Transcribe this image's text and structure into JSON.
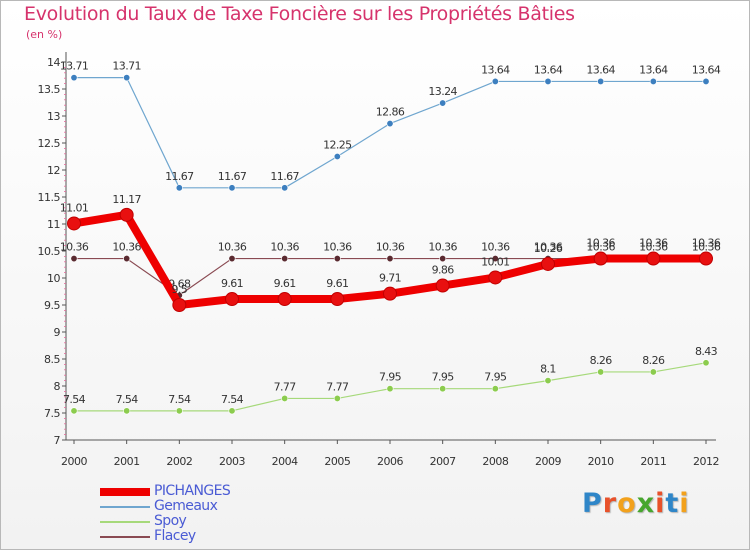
{
  "title": "Evolution du Taux de Taxe Foncière sur les Propriétés Bâties",
  "subtitle": "(en %)",
  "logo": {
    "letters": [
      "P",
      "r",
      "o",
      "x",
      "i",
      "t",
      "i"
    ],
    "colors": [
      "#2f86c8",
      "#e8512a",
      "#f2a11c",
      "#47a62e",
      "#e8512a",
      "#2f86c8",
      "#f2a11c"
    ]
  },
  "chart_data": {
    "type": "line",
    "x": [
      "2000",
      "2001",
      "2002",
      "2003",
      "2004",
      "2005",
      "2006",
      "2007",
      "2008",
      "2009",
      "2010",
      "2011",
      "2012"
    ],
    "ylim": [
      7,
      14
    ],
    "yticks": [
      "7",
      "7.5",
      "8",
      "8.5",
      "9",
      "9.5",
      "10",
      "10.5",
      "11",
      "11.5",
      "12",
      "12.5",
      "13",
      "13.5",
      "14"
    ],
    "grid": false,
    "legend_position": "bottom-left",
    "series": [
      {
        "name": "Gemeaux",
        "color": "#6fa6cf",
        "marker": "#3d7fbf",
        "width": 1.2,
        "values": [
          13.71,
          13.71,
          11.67,
          11.67,
          11.67,
          12.25,
          12.86,
          13.24,
          13.64,
          13.64,
          13.64,
          13.64,
          13.64
        ],
        "labels": [
          "13.71",
          "13.71",
          "11.67",
          "11.67",
          "11.67",
          "12.25",
          "12.86",
          "13.24",
          "13.64",
          "13.64",
          "13.64",
          "13.64",
          "13.64"
        ]
      },
      {
        "name": "Spoy",
        "color": "#a6d97a",
        "marker": "#8ccc4e",
        "width": 1.2,
        "values": [
          7.54,
          7.54,
          7.54,
          7.54,
          7.77,
          7.77,
          7.95,
          7.95,
          7.95,
          8.1,
          8.26,
          8.26,
          8.43
        ],
        "labels": [
          "7.54",
          "7.54",
          "7.54",
          "7.54",
          "7.77",
          "7.77",
          "7.95",
          "7.95",
          "7.95",
          "8.1",
          "8.26",
          "8.26",
          "8.43"
        ]
      },
      {
        "name": "Flacey",
        "color": "#8a4a52",
        "marker": "#5a2a30",
        "width": 1.2,
        "values": [
          10.36,
          10.36,
          9.68,
          10.36,
          10.36,
          10.36,
          10.36,
          10.36,
          10.36,
          10.36,
          10.36,
          10.36,
          10.36
        ],
        "labels": [
          "10.36",
          "10.36",
          "9.68",
          "10.36",
          "10.36",
          "10.36",
          "10.36",
          "10.36",
          "10.36",
          "10.36",
          "10.36",
          "10.36",
          "10.36"
        ]
      },
      {
        "name": "PICHANGES",
        "color": "#ee0000",
        "marker": "#e81010",
        "width": 8,
        "values": [
          11.01,
          11.17,
          9.5,
          9.61,
          9.61,
          9.61,
          9.71,
          9.86,
          10.01,
          10.26,
          10.36,
          10.36,
          10.36
        ],
        "labels": [
          "11.01",
          "11.17",
          "9.5",
          "9.61",
          "9.61",
          "9.61",
          "9.71",
          "9.86",
          "10.01",
          "10.26",
          "10.36",
          "10.36",
          "10.36"
        ]
      }
    ],
    "legend_order": [
      "PICHANGES",
      "Gemeaux",
      "Spoy",
      "Flacey"
    ]
  }
}
